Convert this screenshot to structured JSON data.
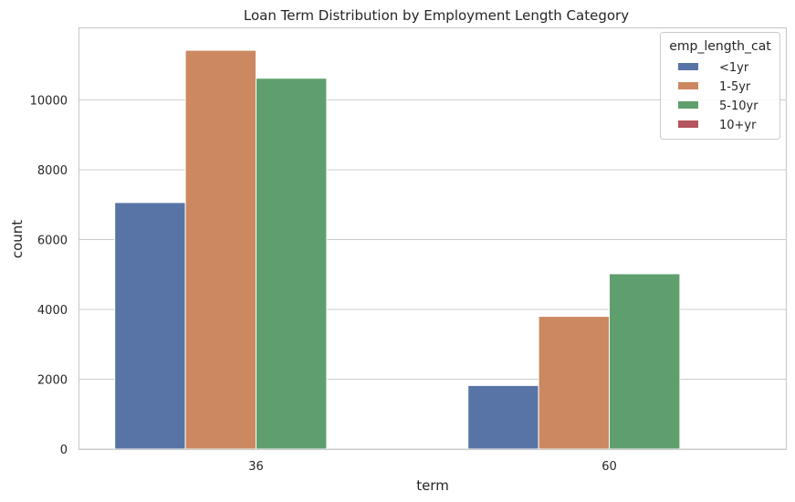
{
  "chart_data": {
    "type": "bar",
    "title": "Loan Term Distribution by Employment Length Category",
    "xlabel": "term",
    "ylabel": "count",
    "categories": [
      "36",
      "60"
    ],
    "series": [
      {
        "name": "<1yr",
        "values": [
          7060,
          1820
        ],
        "color": "#5874a6"
      },
      {
        "name": "1-5yr",
        "values": [
          11420,
          3800
        ],
        "color": "#cc8860"
      },
      {
        "name": "5-10yr",
        "values": [
          10620,
          5020
        ],
        "color": "#5f9f6e"
      },
      {
        "name": "10+yr",
        "values": [
          0,
          0
        ],
        "color": "#b5555f"
      }
    ],
    "ylim": [
      0,
      12050
    ],
    "yticks": [
      0,
      2000,
      4000,
      6000,
      8000,
      10000
    ],
    "ytick_labels": [
      "0",
      "2000",
      "4000",
      "6000",
      "8000",
      "10000"
    ],
    "grid": true,
    "legend": {
      "title": "emp_length_cat",
      "placement": "top-right"
    }
  }
}
